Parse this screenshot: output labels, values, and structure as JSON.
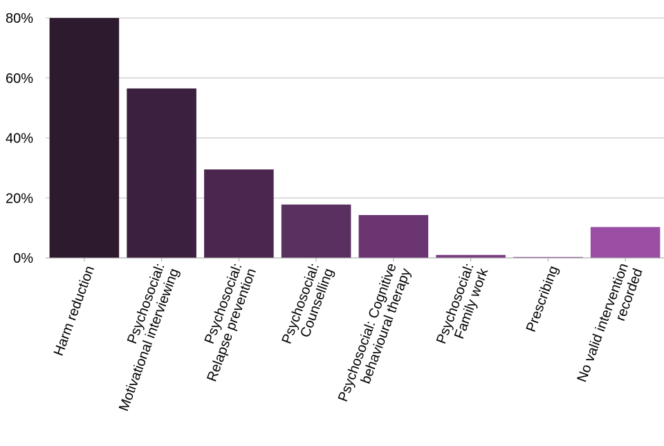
{
  "chart_data": {
    "type": "bar",
    "title": "",
    "xlabel": "",
    "ylabel": "",
    "ylim": [
      0,
      80
    ],
    "yticks": [
      0,
      20,
      40,
      60,
      80
    ],
    "ytick_labels": [
      "0%",
      "20%",
      "40%",
      "60%",
      "80%"
    ],
    "grid": true,
    "legend": "none",
    "categories": [
      [
        "Harm reduction"
      ],
      [
        "Psychosocial:",
        "Motivational interviewing"
      ],
      [
        "Psychosocial:",
        "Relapse prevention"
      ],
      [
        "Psychosocial:",
        "Counselling"
      ],
      [
        "Psychosocial: Cognitive",
        "behavioural therapy"
      ],
      [
        "Psychosocial:",
        "Family work"
      ],
      [
        "Prescribing"
      ],
      [
        "No valid intervention",
        "recorded"
      ]
    ],
    "values": [
      80,
      56.5,
      29.5,
      17.8,
      14.3,
      1,
      0.3,
      10.3
    ],
    "colors": [
      "#2e1a2f",
      "#3c2040",
      "#4b274f",
      "#59305f",
      "#6a3570",
      "#7a3e81",
      "#894791",
      "#9a4fa4"
    ]
  }
}
